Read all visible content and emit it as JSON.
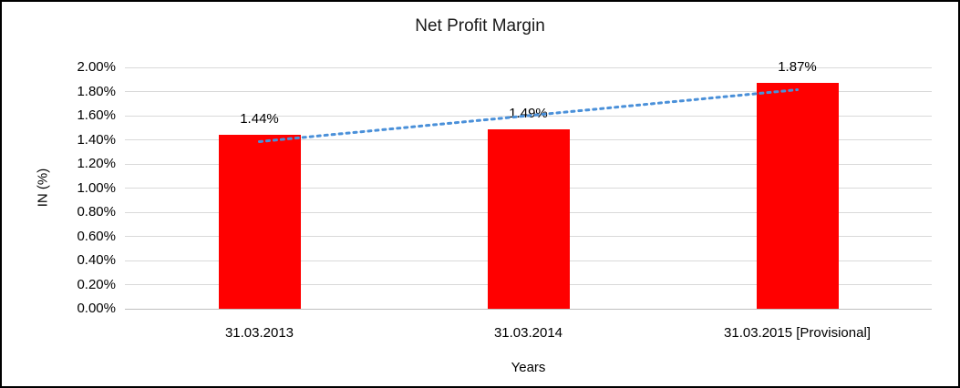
{
  "chart_data": {
    "type": "bar",
    "title": "Net Profit Margin",
    "categories": [
      "31.03.2013",
      "31.03.2014",
      "31.03.2015 [Provisional]"
    ],
    "values": [
      1.44,
      1.49,
      1.87
    ],
    "data_labels": [
      "1.44%",
      "1.49%",
      "1.87%"
    ],
    "xlabel": "Years",
    "ylabel": "IN (%)",
    "ylim": [
      0,
      2.0
    ],
    "ytick_step": 0.2,
    "ytick_labels": [
      "0.00%",
      "0.20%",
      "0.40%",
      "0.60%",
      "0.80%",
      "1.00%",
      "1.20%",
      "1.40%",
      "1.60%",
      "1.80%",
      "2.00%"
    ],
    "grid": true,
    "legend": "none",
    "bar_color": "#ff0000",
    "trendline": {
      "style": "dotted",
      "color": "#4a90d9",
      "fit": "linear"
    }
  }
}
